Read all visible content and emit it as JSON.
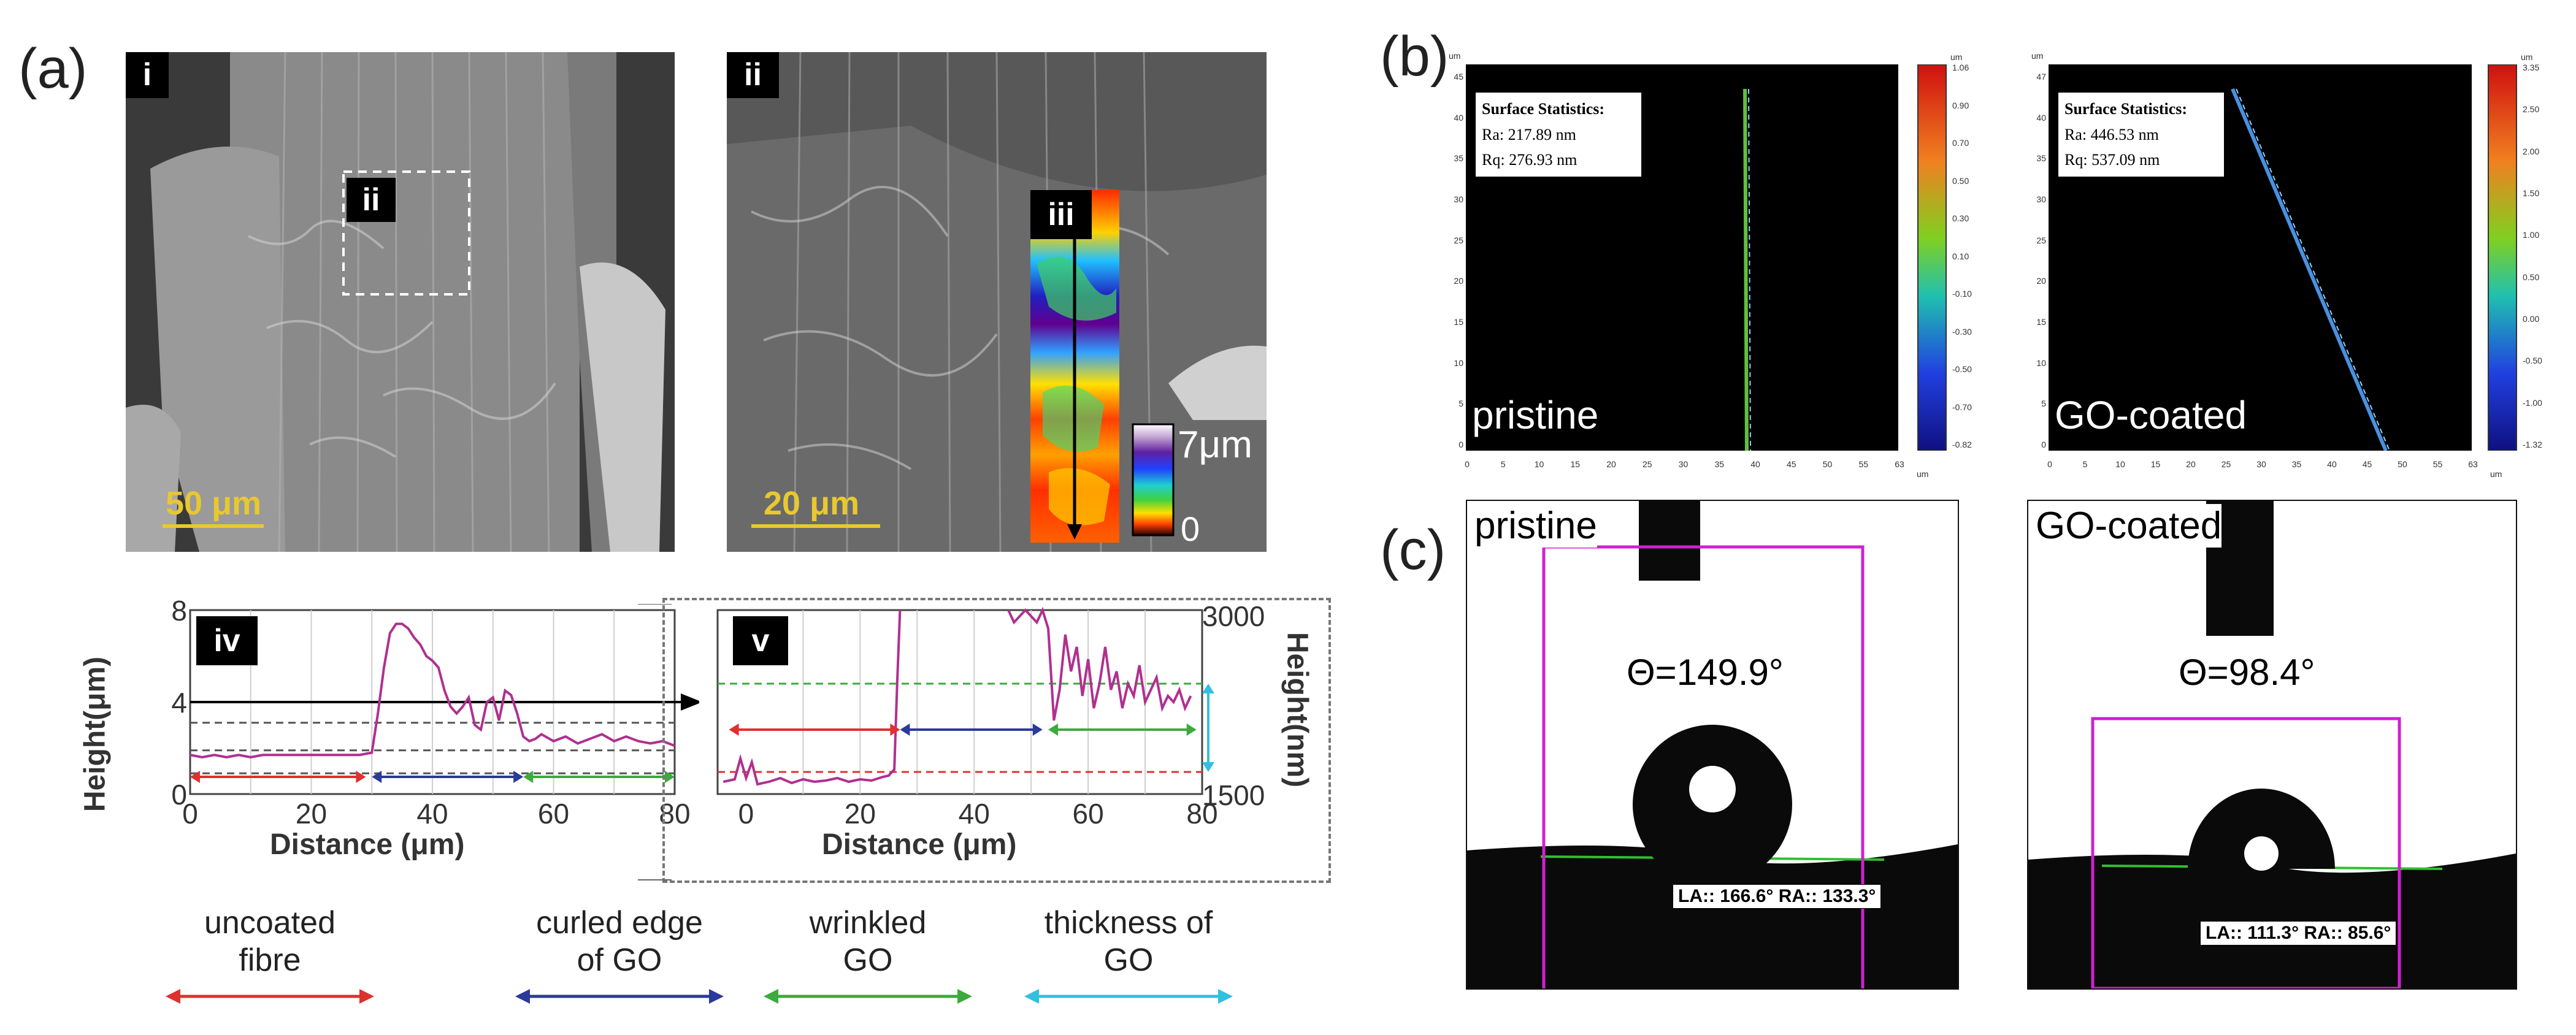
{
  "panels": {
    "a": "(a)",
    "b": "(b)",
    "c": "(c)"
  },
  "sem": {
    "i": {
      "tag": "i",
      "inset_tag": "ii",
      "scale": "50 μm"
    },
    "ii": {
      "tag": "ii",
      "inset_tag": "iii",
      "scale": "20 μm",
      "cb_max": "7μm",
      "cb_min": "0"
    }
  },
  "chart_data": [
    {
      "id": "iv",
      "tag": "iv",
      "type": "line",
      "xlabel": "Distance (μm)",
      "ylabel": "Height(μm)",
      "xlim": [
        0,
        80
      ],
      "ylim": [
        0,
        8
      ],
      "xticks": [
        "0",
        "20",
        "40",
        "60",
        "80"
      ],
      "yticks": [
        "0",
        "4",
        "8"
      ],
      "series": [
        {
          "name": "height profile",
          "color": "#b03090",
          "x": [
            0,
            2,
            4,
            6,
            8,
            10,
            12,
            14,
            16,
            18,
            20,
            22,
            24,
            26,
            28,
            30,
            31,
            32,
            33,
            34,
            35,
            36,
            37,
            38,
            39,
            40,
            41,
            42,
            43,
            44,
            45,
            46,
            47,
            48,
            49,
            50,
            51,
            52,
            53,
            54,
            55,
            56,
            57,
            58,
            60,
            62,
            64,
            66,
            68,
            70,
            72,
            74,
            76,
            78,
            80
          ],
          "y": [
            1.7,
            1.6,
            1.7,
            1.6,
            1.7,
            1.6,
            1.7,
            1.7,
            1.7,
            1.7,
            1.7,
            1.7,
            1.7,
            1.7,
            1.7,
            1.8,
            3.5,
            5.5,
            7.0,
            7.4,
            7.4,
            7.2,
            6.8,
            6.5,
            6.0,
            5.8,
            5.5,
            4.5,
            3.8,
            3.5,
            3.8,
            4.2,
            3.0,
            2.8,
            4.0,
            4.2,
            3.2,
            4.5,
            4.3,
            3.5,
            2.5,
            2.3,
            2.4,
            2.6,
            2.3,
            2.5,
            2.2,
            2.4,
            2.6,
            2.3,
            2.5,
            2.3,
            2.2,
            2.3,
            2.1
          ]
        }
      ],
      "reference_lines": [
        {
          "y": 4,
          "style": "solid arrow",
          "color": "#000000"
        },
        {
          "y": 3.1,
          "style": "dashed",
          "color": "#555555"
        },
        {
          "y": 1.9,
          "style": "dashed",
          "color": "#555555"
        },
        {
          "y": 0.9,
          "style": "dashed",
          "color": "#555555"
        }
      ],
      "range_arrows": [
        {
          "name": "uncoated fibre",
          "from": 0,
          "to": 29,
          "color": "#e03030"
        },
        {
          "name": "curled edge of GO",
          "from": 30,
          "to": 55,
          "color": "#2a3a9a"
        },
        {
          "name": "wrinkled GO",
          "from": 55,
          "to": 80,
          "color": "#3caa3c"
        }
      ]
    },
    {
      "id": "v",
      "tag": "v",
      "type": "line",
      "xlabel": "Distance (μm)",
      "ylabel": "Height(nm)",
      "xlim": [
        -5,
        80
      ],
      "ylim": [
        1500,
        3000
      ],
      "xticks": [
        "0",
        "20",
        "40",
        "60",
        "80"
      ],
      "yticks": [
        "1500",
        "3000"
      ],
      "series": [
        {
          "name": "height profile (nm)",
          "color": "#b03090",
          "x": [
            -4,
            -2,
            -1,
            0,
            1,
            2,
            4,
            6,
            8,
            10,
            12,
            14,
            16,
            18,
            20,
            22,
            24,
            25,
            26,
            26.5,
            27
          ],
          "y": [
            1600,
            1620,
            1790,
            1630,
            1760,
            1580,
            1600,
            1630,
            1590,
            1620,
            1600,
            1610,
            1630,
            1600,
            1620,
            1610,
            1640,
            1650,
            1700,
            2400,
            3000
          ]
        },
        {
          "name": "height profile (nm) segment 2",
          "color": "#b03090",
          "x": [
            46,
            47,
            48,
            49,
            50,
            51,
            52,
            53,
            54,
            55,
            56,
            57,
            58,
            59,
            60,
            61,
            62,
            63,
            64,
            65,
            66,
            67,
            68,
            69,
            70,
            71,
            72,
            73,
            74,
            75,
            76,
            77,
            78
          ],
          "y": [
            3000,
            2900,
            2950,
            3000,
            2950,
            2900,
            3000,
            2850,
            2100,
            2350,
            2800,
            2500,
            2700,
            2300,
            2600,
            2200,
            2400,
            2700,
            2350,
            2500,
            2200,
            2400,
            2300,
            2550,
            2250,
            2350,
            2450,
            2200,
            2300,
            2250,
            2350,
            2200,
            2300
          ]
        }
      ],
      "reference_lines": [
        {
          "y": 2400,
          "style": "dashed",
          "color": "#3caa3c"
        },
        {
          "y": 1680,
          "style": "dashed",
          "color": "#e03030"
        }
      ],
      "range_arrows": [
        {
          "name": "uncoated fibre",
          "from": -3,
          "to": 27,
          "color": "#e03030"
        },
        {
          "name": "curled edge of GO",
          "from": 27,
          "to": 52,
          "color": "#2a3a9a"
        },
        {
          "name": "wrinkled GO",
          "from": 53,
          "to": 79,
          "color": "#3caa3c"
        },
        {
          "name": "thickness of GO",
          "axis": "y",
          "from": 1680,
          "to": 2400,
          "color": "#30c0e0"
        }
      ]
    }
  ],
  "legend": [
    {
      "label": "uncoated\nfibre",
      "color": "#e03030"
    },
    {
      "label": "curled edge\nof GO",
      "color": "#2a3a9a"
    },
    {
      "label": "wrinkled\nGO",
      "color": "#3caa3c"
    },
    {
      "label": "thickness of\nGO",
      "color": "#30c0e0"
    }
  ],
  "afm": [
    {
      "label": "pristine",
      "stats_title": "Surface Statistics:",
      "ra": "Ra:  217.89 nm",
      "rq": "Rq:  276.93 nm",
      "y_unit": "um",
      "x_unit": "um",
      "cb_unit": "um",
      "yticks": [
        "45",
        "40",
        "35",
        "30",
        "25",
        "20",
        "15",
        "10",
        "5",
        "0"
      ],
      "xticks": [
        "0",
        "5",
        "10",
        "15",
        "20",
        "25",
        "30",
        "35",
        "40",
        "45",
        "50",
        "55",
        "63"
      ],
      "cbticks": [
        "1.06",
        "0.90",
        "0.70",
        "0.50",
        "0.30",
        "0.10",
        "-0.10",
        "-0.30",
        "-0.50",
        "-0.70",
        "-0.82"
      ]
    },
    {
      "label": "GO-coated",
      "stats_title": "Surface Statistics:",
      "ra": "Ra:  446.53 nm",
      "rq": "Rq:  537.09 nm",
      "y_unit": "um",
      "x_unit": "um",
      "cb_unit": "um",
      "yticks": [
        "47",
        "40",
        "35",
        "30",
        "25",
        "20",
        "15",
        "10",
        "5",
        "0"
      ],
      "xticks": [
        "0",
        "5",
        "10",
        "15",
        "20",
        "25",
        "30",
        "35",
        "40",
        "45",
        "50",
        "55",
        "63"
      ],
      "cbticks": [
        "3.35",
        "2.50",
        "2.00",
        "1.50",
        "1.00",
        "0.50",
        "0.00",
        "-0.50",
        "-1.00",
        "-1.32"
      ]
    }
  ],
  "contact_angle": [
    {
      "label": "pristine",
      "theta": "Θ=149.9°",
      "lara": "LA:: 166.6° RA:: 133.3°"
    },
    {
      "label": "GO-coated",
      "theta": "Θ=98.4°",
      "lara": "LA:: 111.3° RA:: 85.6°"
    }
  ],
  "colors": {
    "magenta_box": "#d020d0",
    "scale_yellow": "#e8c830",
    "profile": "#b03090"
  }
}
